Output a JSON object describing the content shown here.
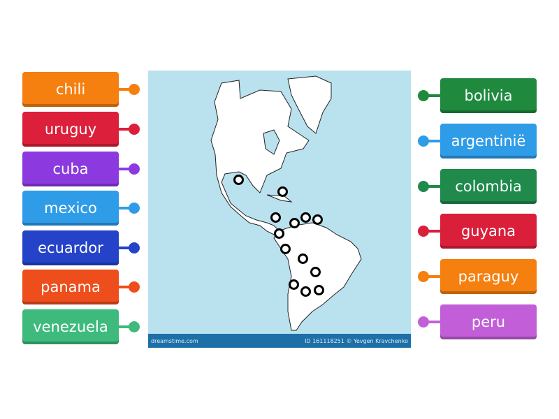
{
  "left_labels": [
    {
      "text": "chili",
      "color": "#f57f0f"
    },
    {
      "text": "uruguy",
      "color": "#dc1f3a"
    },
    {
      "text": "cuba",
      "color": "#8c3ae0"
    },
    {
      "text": "mexico",
      "color": "#2f9ce8"
    },
    {
      "text": "ecuardor",
      "color": "#2443c8"
    },
    {
      "text": "panama",
      "color": "#ee4d1c"
    },
    {
      "text": "venezuela",
      "color": "#3dba7c"
    }
  ],
  "right_labels": [
    {
      "text": "bolivia",
      "color": "#1f8a3e"
    },
    {
      "text": "argentinië",
      "color": "#2f9ce8"
    },
    {
      "text": "colombia",
      "color": "#1f8a4c"
    },
    {
      "text": "guyana",
      "color": "#d91f3a"
    },
    {
      "text": "paraguy",
      "color": "#f57f0f"
    },
    {
      "text": "peru",
      "color": "#c25fd8"
    }
  ],
  "map": {
    "watermark_left": "dreamstime.com",
    "watermark_right": "ID 161118251 © Yevgen Kravchenko",
    "drop_targets": 13
  }
}
